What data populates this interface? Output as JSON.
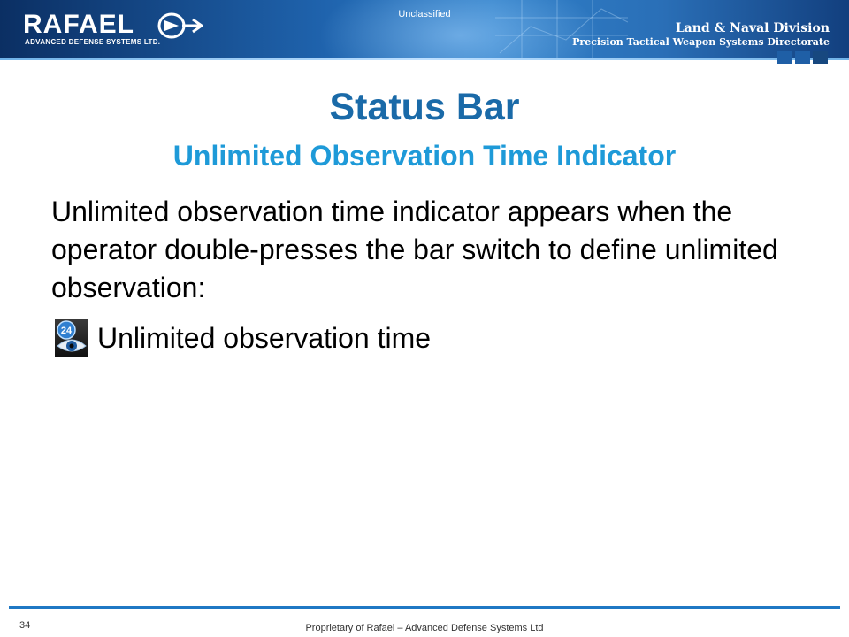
{
  "header": {
    "logo_text": "RAFAEL",
    "logo_subtext": "ADVANCED DEFENSE SYSTEMS LTD.",
    "classification": "Unclassified",
    "division_title": "Land & Naval Division",
    "directorate": "Precision Tactical Weapon Systems Directorate",
    "colors": {
      "banner_dark": "#0b2f63",
      "banner_mid": "#2f7fc8",
      "squares": "#1f5fa6"
    }
  },
  "slide": {
    "title": "Status Bar",
    "subtitle": "Unlimited Observation Time Indicator",
    "body": "Unlimited observation time indicator appears when the operator double-presses the bar switch to define unlimited observation:",
    "items": [
      {
        "icon": "eye-24-icon",
        "badge": "24",
        "label": "Unlimited observation time"
      }
    ],
    "colors": {
      "title": "#1a6aa8",
      "subtitle": "#1e9ad8"
    }
  },
  "footer": {
    "page_number": "34",
    "proprietary": "Proprietary of Rafael – Advanced Defense Systems Ltd"
  }
}
